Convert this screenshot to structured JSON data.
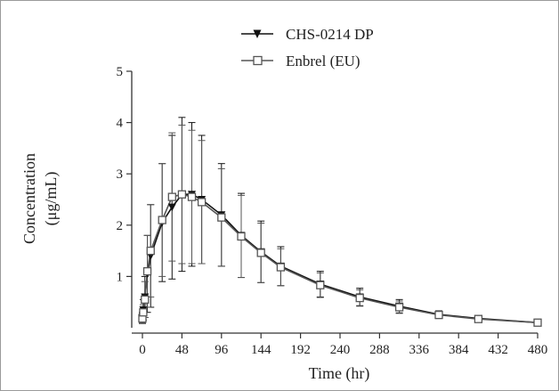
{
  "chart_data": {
    "type": "line",
    "title": "",
    "xlabel": "Time (hr)",
    "ylabel_line1": "Concentration",
    "ylabel_line2": "(μg/mL)",
    "xlim": [
      0,
      480
    ],
    "ylim": [
      0,
      5
    ],
    "xticks": [
      0,
      48,
      96,
      144,
      192,
      240,
      288,
      336,
      384,
      432,
      480
    ],
    "yticks": [
      1,
      2,
      3,
      4,
      5
    ],
    "grid": false,
    "legend_position": "top-center",
    "series": [
      {
        "name": "CHS-0214 DP",
        "marker": "filled-down-triangle",
        "color": "#111111",
        "x": [
          0,
          1,
          3,
          6,
          10,
          24,
          36,
          48,
          60,
          72,
          96,
          120,
          144,
          168,
          216,
          264,
          312,
          360,
          408,
          480
        ],
        "y": [
          0.2,
          0.35,
          0.6,
          1.05,
          1.4,
          2.05,
          2.35,
          2.6,
          2.6,
          2.5,
          2.2,
          1.8,
          1.48,
          1.2,
          0.85,
          0.6,
          0.42,
          0.26,
          0.18,
          0.1
        ],
        "err": [
          0.1,
          0.2,
          0.4,
          0.75,
          1.0,
          1.15,
          1.4,
          1.5,
          1.4,
          1.25,
          1.0,
          0.82,
          0.6,
          0.38,
          0.25,
          0.17,
          0.13,
          0.07,
          0.05,
          0.04
        ]
      },
      {
        "name": "Enbrel (EU)",
        "marker": "open-square",
        "color": "#555555",
        "x": [
          0,
          1,
          3,
          6,
          10,
          24,
          36,
          48,
          60,
          72,
          96,
          120,
          144,
          168,
          216,
          264,
          312,
          360,
          408,
          480
        ],
        "y": [
          0.18,
          0.3,
          0.55,
          1.1,
          1.5,
          2.1,
          2.55,
          2.6,
          2.55,
          2.45,
          2.15,
          1.78,
          1.46,
          1.18,
          0.83,
          0.58,
          0.4,
          0.25,
          0.17,
          0.1
        ],
        "err": [
          0.1,
          0.15,
          0.35,
          0.7,
          0.9,
          1.1,
          1.25,
          1.35,
          1.3,
          1.2,
          0.95,
          0.8,
          0.58,
          0.36,
          0.24,
          0.16,
          0.12,
          0.07,
          0.05,
          0.04
        ]
      }
    ]
  }
}
